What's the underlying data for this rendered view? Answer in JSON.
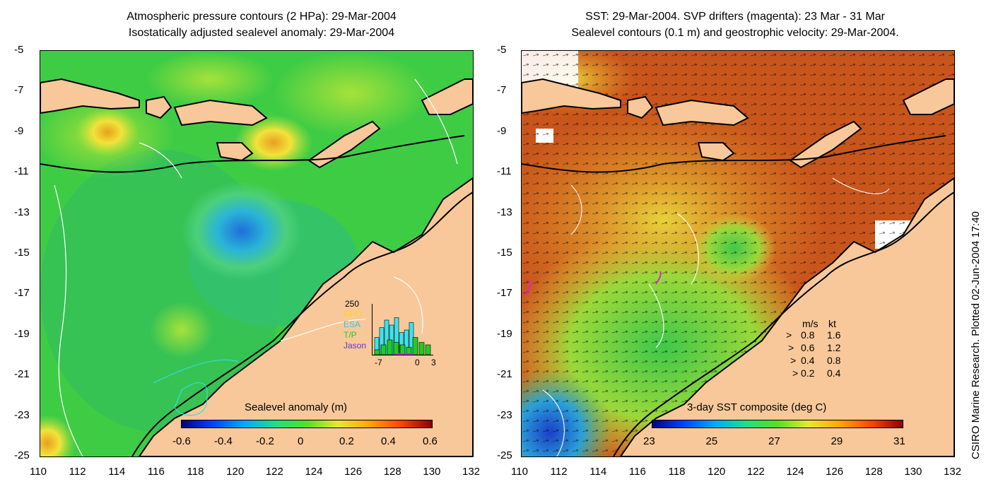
{
  "left": {
    "title_line1": "Atmospheric pressure contours (2 HPa): 29-Mar-2004",
    "title_line2": "Isostatically adjusted sealevel anomaly: 29-Mar-2004",
    "colorbar": {
      "label": "Sealevel anomaly (m)",
      "ticks": [
        "-0.6",
        "-0.4",
        "-0.2",
        "0",
        "0.2",
        "0.4",
        "0.6"
      ]
    },
    "histogram": {
      "ymax_label": "250",
      "legend": [
        {
          "name": "GFO",
          "color": "#ffd700"
        },
        {
          "name": "ESA",
          "color": "#39c4e6"
        },
        {
          "name": "T/P",
          "color": "#22cc22"
        },
        {
          "name": "Jason",
          "color": "#6633cc"
        }
      ],
      "xticks": [
        "-7",
        "0",
        "3"
      ],
      "bars_cyan": [
        0.35,
        0.55,
        0.7,
        0.6,
        0.75,
        0.45,
        0.5,
        0.65
      ],
      "bars_green": [
        0.1,
        0.2,
        0.3,
        0.25,
        0.2,
        0.15,
        0.35,
        0.25,
        0.2
      ]
    }
  },
  "right": {
    "title_line1": "SST: 29-Mar-2004. SVP drifters (magenta): 23 Mar - 31 Mar",
    "title_line2": "Sealevel contours (0.1 m) and geostrophic velocity: 29-Mar-2004.",
    "colorbar": {
      "label": "3-day SST composite (deg C)",
      "ticks": [
        "23",
        "25",
        "27",
        "29",
        "31"
      ]
    },
    "velocity_legend": {
      "header_ms": "m/s",
      "header_kt": "kt",
      "rows": [
        {
          "ms": "0.8",
          "kt": "1.6"
        },
        {
          "ms": "0.6",
          "kt": "1.2"
        },
        {
          "ms": "0.4",
          "kt": "0.8"
        },
        {
          "ms": "0.2",
          "kt": "0.4"
        }
      ]
    }
  },
  "axes": {
    "lat_ticks": [
      "-5",
      "-7",
      "-9",
      "-11",
      "-13",
      "-15",
      "-17",
      "-19",
      "-21",
      "-23",
      "-25"
    ],
    "lon_ticks": [
      "110",
      "112",
      "114",
      "116",
      "118",
      "120",
      "122",
      "124",
      "126",
      "128",
      "130",
      "132"
    ]
  },
  "credit": "CSIRO Marine Research. Plotted 02-Jun-2004 17:40",
  "colors": {
    "land": "#f8c89a",
    "coast": "#000000",
    "sla_bg": "#3bd23b",
    "sst_bg": "#c8561c"
  }
}
